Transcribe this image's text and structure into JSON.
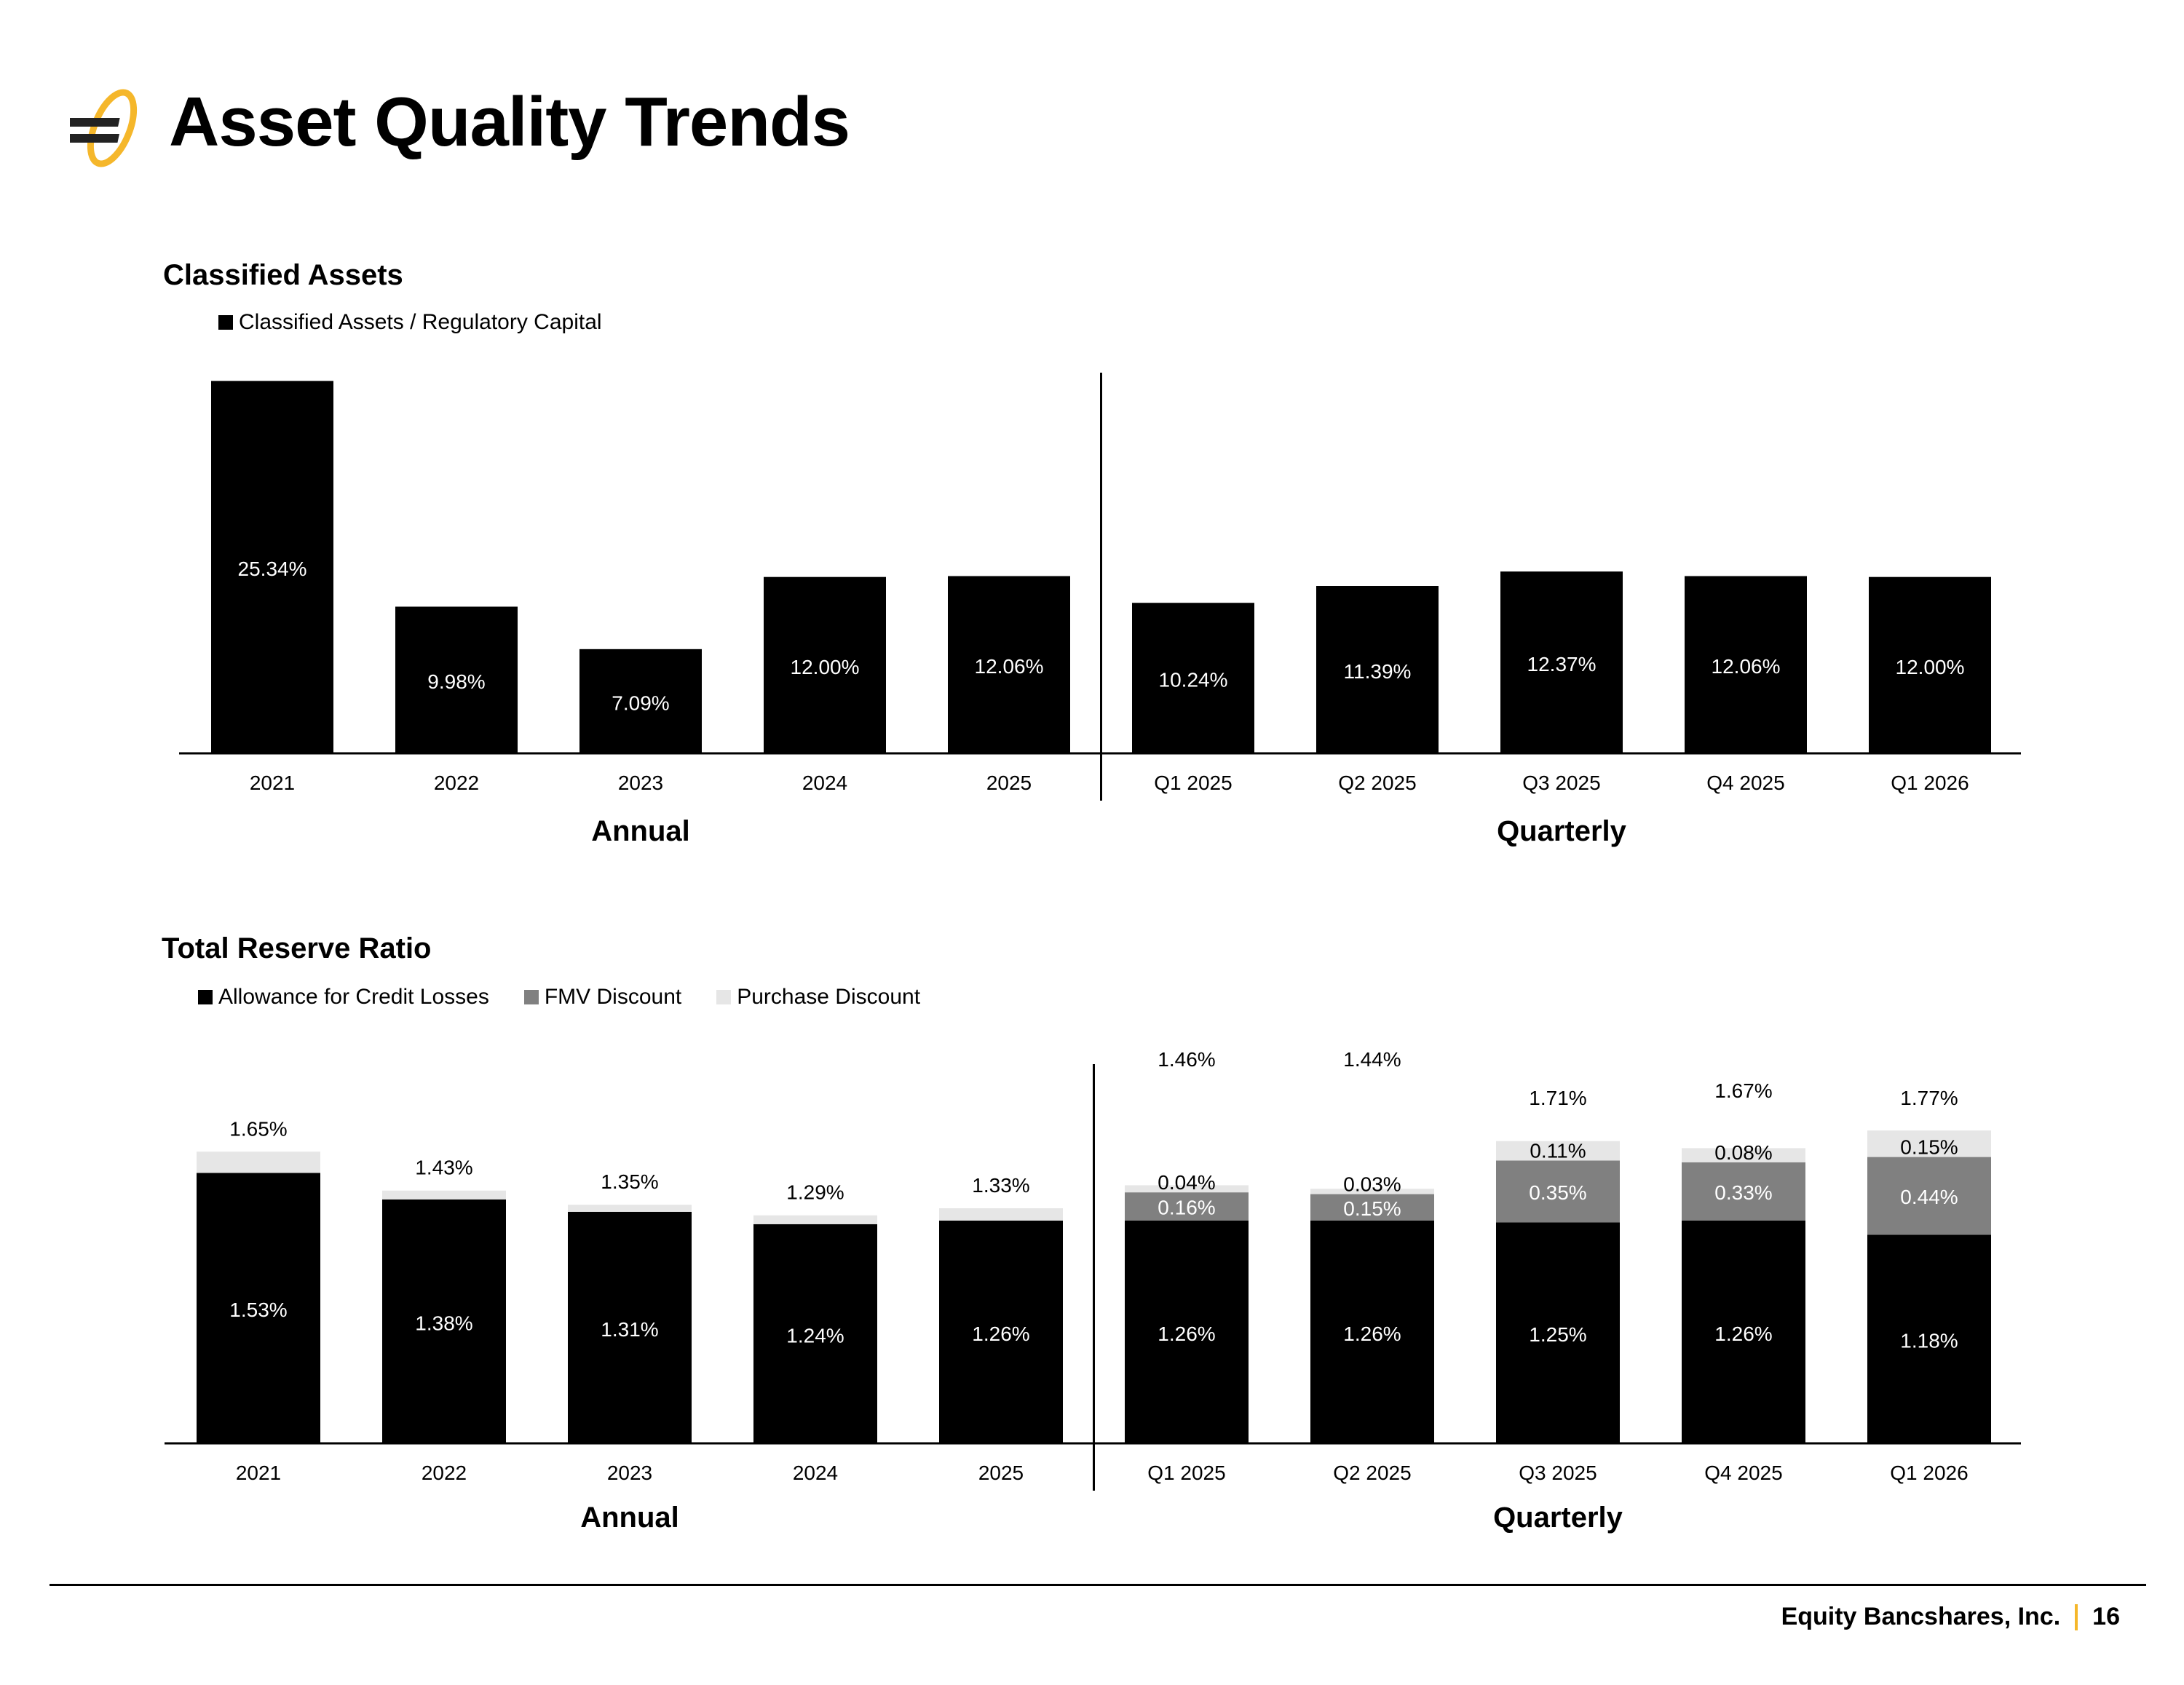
{
  "page": {
    "title": "Asset Quality Trends",
    "company": "Equity Bancshares, Inc.",
    "page_number": "16"
  },
  "colors": {
    "allowance": "#000000",
    "fmv": "#808080",
    "purchase": "#e6e6e6",
    "brand_gold": "#f5b72b",
    "brand_dark": "#222222"
  },
  "icons": {
    "logo": "equity-bancshares-logo-icon"
  },
  "chart_data": [
    {
      "type": "bar",
      "title": "Classified Assets",
      "legend": [
        "Classified Assets / Regulatory Capital"
      ],
      "categories": [
        "2021",
        "2022",
        "2023",
        "2024",
        "2025",
        "Q1 2025",
        "Q2 2025",
        "Q3 2025",
        "Q4 2025",
        "Q1 2026"
      ],
      "series": [
        {
          "name": "Classified Assets / Regulatory Capital",
          "values": [
            25.34,
            9.98,
            7.09,
            12.0,
            12.06,
            10.24,
            11.39,
            12.37,
            12.06,
            12.0
          ],
          "labels": [
            "25.34%",
            "9.98%",
            "7.09%",
            "12.00%",
            "12.06%",
            "10.24%",
            "11.39%",
            "12.37%",
            "12.06%",
            "12.00%"
          ]
        }
      ],
      "groups": [
        {
          "label": "Annual",
          "start": 0,
          "end": 4
        },
        {
          "label": "Quarterly",
          "start": 5,
          "end": 9
        }
      ],
      "ylim": [
        0,
        26
      ],
      "grid": false,
      "legend_position": "top-left"
    },
    {
      "type": "bar",
      "stacked": true,
      "title": "Total Reserve Ratio",
      "legend": [
        "Allowance for Credit Losses",
        "FMV Discount",
        "Purchase Discount"
      ],
      "categories": [
        "2021",
        "2022",
        "2023",
        "2024",
        "2025",
        "Q1 2025",
        "Q2 2025",
        "Q3 2025",
        "Q4 2025",
        "Q1 2026"
      ],
      "series": [
        {
          "name": "Allowance for Credit Losses",
          "values": [
            1.53,
            1.38,
            1.31,
            1.24,
            1.26,
            1.26,
            1.26,
            1.25,
            1.26,
            1.18
          ],
          "labels": [
            "1.53%",
            "1.38%",
            "1.31%",
            "1.24%",
            "1.26%",
            "1.26%",
            "1.26%",
            "1.25%",
            "1.26%",
            "1.18%"
          ]
        },
        {
          "name": "FMV Discount",
          "values": [
            0,
            0,
            0,
            0,
            0,
            0.16,
            0.15,
            0.35,
            0.33,
            0.44
          ],
          "labels": [
            "",
            "",
            "",
            "",
            "",
            "0.16%",
            "0.15%",
            "0.35%",
            "0.33%",
            "0.44%"
          ]
        },
        {
          "name": "Purchase Discount",
          "values": [
            0.12,
            0.05,
            0.04,
            0.05,
            0.07,
            0.04,
            0.03,
            0.11,
            0.08,
            0.15
          ],
          "labels": [
            "",
            "",
            "",
            "",
            "",
            "0.04%",
            "0.03%",
            "0.11%",
            "0.08%",
            "0.15%"
          ]
        }
      ],
      "totals": [
        "1.65%",
        "1.43%",
        "1.35%",
        "1.29%",
        "1.33%",
        "1.46%",
        "1.44%",
        "1.71%",
        "1.67%",
        "1.77%"
      ],
      "groups": [
        {
          "label": "Annual",
          "start": 0,
          "end": 4
        },
        {
          "label": "Quarterly",
          "start": 5,
          "end": 9
        }
      ],
      "ylim": [
        0,
        2.1
      ],
      "grid": false,
      "legend_position": "top-left"
    }
  ]
}
